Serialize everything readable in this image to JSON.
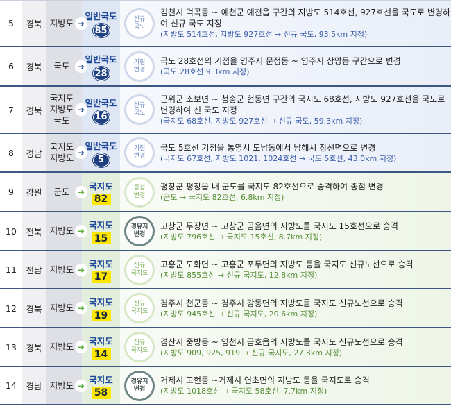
{
  "rows": [
    {
      "no": "5",
      "region": "경북",
      "from": [
        "지방도"
      ],
      "type": "일반국도",
      "route": "85",
      "badge": [
        "신규",
        "국도"
      ],
      "badge_kind": "normal",
      "theme": "blue",
      "main": "김천시 덕곡동 ~ 예천군 예천읍 구간의 지방도 514호선, 927호선을 국도로 변경하여 신규 국도 지정",
      "sub": "(지방도 514호선, 지방도 927호선 → 신규 국도, 93.5km 지정)",
      "h": 67
    },
    {
      "no": "6",
      "region": "경북",
      "from": [
        "국도"
      ],
      "type": "일반국도",
      "route": "28",
      "badge": [
        "기점",
        "변경"
      ],
      "badge_kind": "normal",
      "theme": "blue",
      "main": "국도 28호선의 기점을 영주시 문정동 ~ 영주시 상망동 구간으로 변경",
      "sub": "(국도 28호선 9.3km 지정)",
      "h": 57
    },
    {
      "no": "7",
      "region": "경북",
      "from": [
        "국지도",
        "지방도",
        "국도"
      ],
      "type": "일반국도",
      "route": "16",
      "badge": [
        "신규",
        "국도"
      ],
      "badge_kind": "normal",
      "theme": "blue",
      "main": "군위군 소보면 ~ 청송군 현동면 구간의 국지도 68호선, 지방도 927호선을 국도로 변경하여 신 국도 지정",
      "sub": "(국지도 68호선, 지방도 927호선 → 신규 국도, 59.3km 지정)",
      "h": 68
    },
    {
      "no": "8",
      "region": "경남",
      "from": [
        "국지도",
        "지방도"
      ],
      "type": "일반국도",
      "route": "5",
      "badge": [
        "기점",
        "변경"
      ],
      "badge_kind": "normal",
      "theme": "blue",
      "main": "국도 5호선 기점을 통영시 도남동에서 남해시 창선면으로 변경",
      "sub": "(국지도 67호선, 지방도 1021, 1024호선 → 국도 5호선, 43.0km 지정)",
      "h": 56
    },
    {
      "no": "9",
      "region": "강원",
      "from": [
        "군도"
      ],
      "type": "국지도",
      "route": "82",
      "badge": [
        "종점",
        "변경"
      ],
      "badge_kind": "normal",
      "theme": "green",
      "main": "평창군 평창읍 내 군도를 국지도 82호선으로 승격하여 종점 변경",
      "sub": "(군도 → 국지도 82호선, 6.8km 지정)",
      "h": 57
    },
    {
      "no": "10",
      "region": "전북",
      "from": [
        "지방도"
      ],
      "type": "국지도",
      "route": "15",
      "badge": [
        "경유지",
        "변경"
      ],
      "badge_kind": "route",
      "theme": "green",
      "main": "고창군 무장면 ~ 고창군 공음면의 지방도를 국지도 15호선으로 승격",
      "sub": "(지방도 796호선 → 국지도 15호선, 8.7km 지정)",
      "h": 56
    },
    {
      "no": "11",
      "region": "전남",
      "from": [
        "지방도"
      ],
      "type": "국지도",
      "route": "17",
      "badge": [
        "신규",
        "국지도"
      ],
      "badge_kind": "normal",
      "theme": "green",
      "main": "고흥군 도화면 ~ 고흥군 포두면의 지방도 등을 국지도 신규노선으로 승격",
      "sub": "(지방도 855호선 → 신규 국지도, 12.8km 지정)",
      "h": 55
    },
    {
      "no": "12",
      "region": "경북",
      "from": [
        "지방도"
      ],
      "type": "국지도",
      "route": "19",
      "badge": [
        "신규",
        "국지도"
      ],
      "badge_kind": "normal",
      "theme": "green",
      "main": "경주시 천군동 ~ 경주시 강동면의 지방도를 국지도 신규노선으로 승격",
      "sub": "(지방도 945호선 → 신규 국지도, 20.6km 지정)",
      "h": 56
    },
    {
      "no": "13",
      "region": "경북",
      "from": [
        "지방도"
      ],
      "type": "국지도",
      "route": "14",
      "badge": [
        "신규",
        "국지도"
      ],
      "badge_kind": "normal",
      "theme": "green",
      "main": "경산시 중방동 ~ 영천시 금호읍의 지방도를 국지도 신규노선으로 승격",
      "sub": "(지방도 909, 925, 919 → 신규 국지도, 27.3km 지정)",
      "h": 56
    },
    {
      "no": "14",
      "region": "경남",
      "from": [
        "지방도"
      ],
      "type": "국지도",
      "route": "58",
      "badge": [
        "경유지",
        "변경"
      ],
      "badge_kind": "route",
      "theme": "green",
      "main": "거제시 고현동 ~거제시 연초면의 지방도 등을 국지도로 승격",
      "sub": "(지방도 1018호선 → 국지도 58호선, 7.7km 지정)",
      "h": 55
    }
  ],
  "icons": {
    "arrow": "arrow-right-icon"
  },
  "colors": {
    "blue_theme": "#1e3f80",
    "green_theme": "#5fae3c",
    "route_yellow": "#ffe600",
    "row_border": "#3d5783"
  }
}
